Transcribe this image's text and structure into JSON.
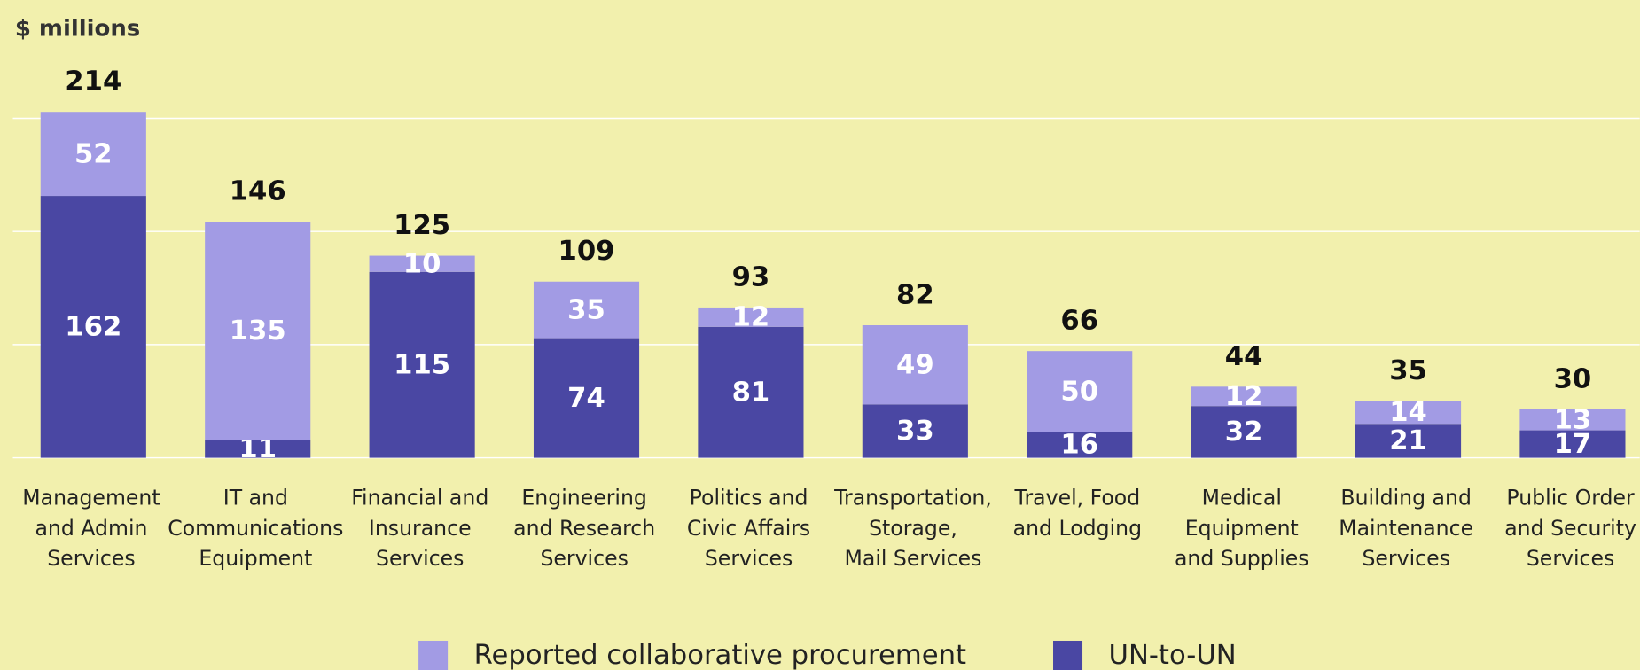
{
  "chart_data": {
    "type": "stacked_bar",
    "y_label": "$ millions",
    "categories": [
      [
        "Management",
        "and Admin",
        "Services"
      ],
      [
        "IT and",
        "Communications",
        "Equipment"
      ],
      [
        "Financial and",
        "Insurance",
        "Services"
      ],
      [
        "Engineering",
        "and Research",
        "Services"
      ],
      [
        "Politics and",
        "Civic Affairs",
        "Services"
      ],
      [
        "Transportation,",
        "Storage,",
        "Mail Services"
      ],
      [
        "Travel, Food",
        "and Lodging"
      ],
      [
        "Medical",
        "Equipment",
        "and Supplies"
      ],
      [
        "Building and",
        "Maintenance",
        "Services"
      ],
      [
        "Public Order",
        "and Security",
        "Services"
      ]
    ],
    "series": [
      {
        "name": "UN-to-UN",
        "color": "#4a47a3",
        "values": [
          162,
          11,
          115,
          74,
          81,
          33,
          16,
          32,
          21,
          17
        ]
      },
      {
        "name": "Reported collaborative procurement",
        "color": "#a29be4",
        "values": [
          52,
          135,
          10,
          35,
          12,
          49,
          50,
          12,
          14,
          13
        ]
      }
    ],
    "totals": [
      214,
      146,
      125,
      109,
      93,
      82,
      66,
      44,
      35,
      30
    ],
    "ylim": [
      0,
      240
    ],
    "yticks": [
      0,
      70,
      140,
      210
    ],
    "grid": true,
    "legend": "bottom"
  }
}
